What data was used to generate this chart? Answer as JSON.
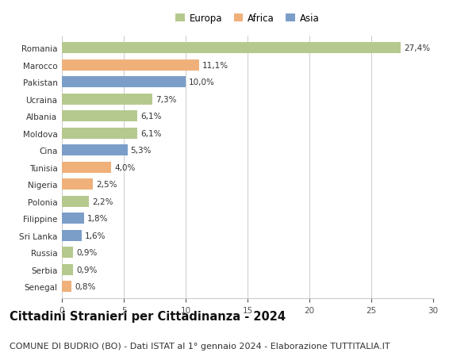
{
  "countries": [
    "Romania",
    "Marocco",
    "Pakistan",
    "Ucraina",
    "Albania",
    "Moldova",
    "Cina",
    "Tunisia",
    "Nigeria",
    "Polonia",
    "Filippine",
    "Sri Lanka",
    "Russia",
    "Serbia",
    "Senegal"
  ],
  "values": [
    27.4,
    11.1,
    10.0,
    7.3,
    6.1,
    6.1,
    5.3,
    4.0,
    2.5,
    2.2,
    1.8,
    1.6,
    0.9,
    0.9,
    0.8
  ],
  "labels": [
    "27,4%",
    "11,1%",
    "10,0%",
    "7,3%",
    "6,1%",
    "6,1%",
    "5,3%",
    "4,0%",
    "2,5%",
    "2,2%",
    "1,8%",
    "1,6%",
    "0,9%",
    "0,9%",
    "0,8%"
  ],
  "continents": [
    "Europa",
    "Africa",
    "Asia",
    "Europa",
    "Europa",
    "Europa",
    "Asia",
    "Africa",
    "Africa",
    "Europa",
    "Asia",
    "Asia",
    "Europa",
    "Europa",
    "Africa"
  ],
  "colors": {
    "Europa": "#b5c98e",
    "Africa": "#f0b07a",
    "Asia": "#7b9ec9"
  },
  "xlim": [
    0,
    30
  ],
  "xticks": [
    0,
    5,
    10,
    15,
    20,
    25,
    30
  ],
  "title": "Cittadini Stranieri per Cittadinanza - 2024",
  "subtitle": "COMUNE DI BUDRIO (BO) - Dati ISTAT al 1° gennaio 2024 - Elaborazione TUTTITALIA.IT",
  "background_color": "#ffffff",
  "bar_height": 0.65,
  "grid_color": "#cccccc",
  "title_fontsize": 10.5,
  "subtitle_fontsize": 8,
  "label_fontsize": 7.5,
  "tick_fontsize": 7.5,
  "legend_fontsize": 8.5
}
